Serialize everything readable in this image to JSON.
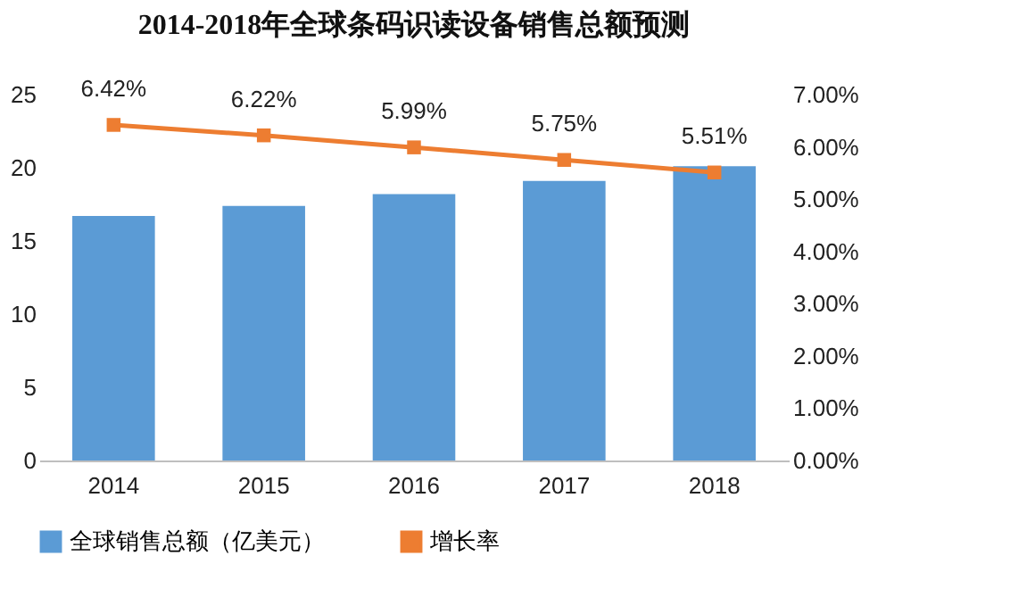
{
  "chart_data": {
    "type": "bar",
    "title": "2014-2018年全球条码识读设备销售总额预测",
    "categories": [
      "2014",
      "2015",
      "2016",
      "2017",
      "2018"
    ],
    "series": [
      {
        "name": "全球销售总额（亿美元）",
        "color": "#5b9bd5",
        "values": [
          16.7,
          17.4,
          18.2,
          19.1,
          20.1
        ]
      },
      {
        "name": "增长率",
        "type": "line",
        "axis": "y2",
        "color": "#ed7d31",
        "marker": "square",
        "values": [
          6.42,
          6.22,
          5.99,
          5.75,
          5.51
        ],
        "value_labels": [
          "6.42%",
          "6.22%",
          "5.99%",
          "5.75%",
          "5.51%"
        ]
      }
    ],
    "ylim": [
      0,
      25
    ],
    "yticks": [
      0,
      5,
      10,
      15,
      20,
      25
    ],
    "y2lim": [
      0,
      7
    ],
    "y2ticks": [
      {
        "value": 0,
        "label": "0.00%"
      },
      {
        "value": 1,
        "label": "1.00%"
      },
      {
        "value": 2,
        "label": "2.00%"
      },
      {
        "value": 3,
        "label": "3.00%"
      },
      {
        "value": 4,
        "label": "4.00%"
      },
      {
        "value": 5,
        "label": "5.00%"
      },
      {
        "value": 6,
        "label": "6.00%"
      },
      {
        "value": 7,
        "label": "7.00%"
      }
    ],
    "legend": "bottom",
    "grid": false
  }
}
